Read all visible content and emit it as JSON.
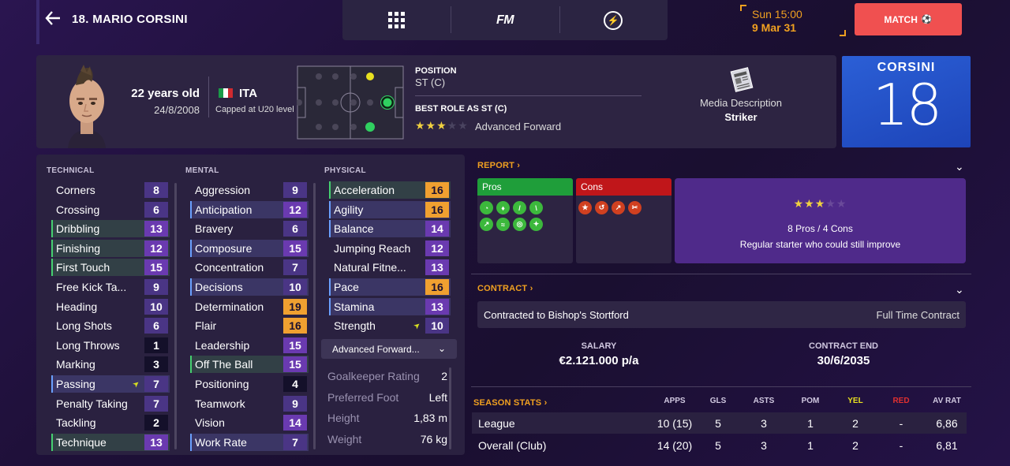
{
  "topbar": {
    "player_title": "18. MARIO CORSINI",
    "nav_logo": "FM",
    "time": "Sun 15:00",
    "date": "9 Mar 31",
    "match_label": "MATCH"
  },
  "header": {
    "age": "22 years old",
    "dob": "24/8/2008",
    "nationality": "ITA",
    "capped": "Capped at U20 level",
    "position_label": "POSITION",
    "position_value": "ST (C)",
    "best_role_label": "BEST ROLE AS ST (C)",
    "best_role_stars": 3,
    "best_role_value": "Advanced Forward",
    "media_label": "Media Description",
    "media_value": "Striker",
    "shirt_name": "CORSINI",
    "shirt_number": "18"
  },
  "attributes": {
    "technical_label": "TECHNICAL",
    "mental_label": "MENTAL",
    "physical_label": "PHYSICAL",
    "technical": [
      {
        "name": "Corners",
        "value": "8",
        "hl": ""
      },
      {
        "name": "Crossing",
        "value": "6",
        "hl": ""
      },
      {
        "name": "Dribbling",
        "value": "13",
        "hl": "hlg"
      },
      {
        "name": "Finishing",
        "value": "12",
        "hl": "hlg"
      },
      {
        "name": "First Touch",
        "value": "15",
        "hl": "hlg"
      },
      {
        "name": "Free Kick Ta...",
        "value": "9",
        "hl": ""
      },
      {
        "name": "Heading",
        "value": "10",
        "hl": ""
      },
      {
        "name": "Long Shots",
        "value": "6",
        "hl": ""
      },
      {
        "name": "Long Throws",
        "value": "1",
        "hl": ""
      },
      {
        "name": "Marking",
        "value": "3",
        "hl": ""
      },
      {
        "name": "Passing",
        "value": "7",
        "hl": "hl",
        "arrow": true
      },
      {
        "name": "Penalty Taking",
        "value": "7",
        "hl": ""
      },
      {
        "name": "Tackling",
        "value": "2",
        "hl": ""
      },
      {
        "name": "Technique",
        "value": "13",
        "hl": "hlg"
      }
    ],
    "mental": [
      {
        "name": "Aggression",
        "value": "9",
        "hl": ""
      },
      {
        "name": "Anticipation",
        "value": "12",
        "hl": "hl"
      },
      {
        "name": "Bravery",
        "value": "6",
        "hl": ""
      },
      {
        "name": "Composure",
        "value": "15",
        "hl": "hl"
      },
      {
        "name": "Concentration",
        "value": "7",
        "hl": ""
      },
      {
        "name": "Decisions",
        "value": "10",
        "hl": "hl"
      },
      {
        "name": "Determination",
        "value": "19",
        "hl": ""
      },
      {
        "name": "Flair",
        "value": "16",
        "hl": ""
      },
      {
        "name": "Leadership",
        "value": "15",
        "hl": ""
      },
      {
        "name": "Off The Ball",
        "value": "15",
        "hl": "hlg"
      },
      {
        "name": "Positioning",
        "value": "4",
        "hl": ""
      },
      {
        "name": "Teamwork",
        "value": "9",
        "hl": ""
      },
      {
        "name": "Vision",
        "value": "14",
        "hl": ""
      },
      {
        "name": "Work Rate",
        "value": "7",
        "hl": "hl"
      }
    ],
    "physical": [
      {
        "name": "Acceleration",
        "value": "16",
        "hl": "hlg"
      },
      {
        "name": "Agility",
        "value": "16",
        "hl": "hl"
      },
      {
        "name": "Balance",
        "value": "14",
        "hl": "hl"
      },
      {
        "name": "Jumping Reach",
        "value": "12",
        "hl": ""
      },
      {
        "name": "Natural Fitne...",
        "value": "13",
        "hl": ""
      },
      {
        "name": "Pace",
        "value": "16",
        "hl": "hl"
      },
      {
        "name": "Stamina",
        "value": "13",
        "hl": "hl"
      },
      {
        "name": "Strength",
        "value": "10",
        "hl": "",
        "arrow": true
      }
    ],
    "role_dropdown": "Advanced Forward...",
    "info": [
      {
        "key": "Goalkeeper Rating",
        "value": "2"
      },
      {
        "key": "Preferred Foot",
        "value": "Left"
      },
      {
        "key": "Height",
        "value": "1,83 m"
      },
      {
        "key": "Weight",
        "value": "76 kg"
      }
    ]
  },
  "report": {
    "heading": "REPORT",
    "pros_label": "Pros",
    "cons_label": "Cons",
    "stars": 3,
    "count_text": "8 Pros / 4 Cons",
    "summary": "Regular starter who could still improve"
  },
  "contract": {
    "heading": "CONTRACT",
    "club_text": "Contracted to Bishop's Stortford",
    "type": "Full Time Contract",
    "salary_label": "SALARY",
    "salary_value": "€2.121.000 p/a",
    "end_label": "CONTRACT END",
    "end_value": "30/6/2035"
  },
  "season_stats": {
    "heading": "SEASON STATS",
    "columns": [
      "APPS",
      "GLS",
      "ASTS",
      "POM",
      "YEL",
      "RED",
      "AV RAT"
    ],
    "rows": [
      {
        "label": "League",
        "cells": [
          "10 (15)",
          "5",
          "3",
          "1",
          "2",
          "-",
          "6,86"
        ]
      },
      {
        "label": "Overall (Club)",
        "cells": [
          "14 (20)",
          "5",
          "3",
          "1",
          "2",
          "-",
          "6,81"
        ]
      }
    ]
  },
  "colors": {
    "accent_orange": "#f0a020",
    "match_red": "#f05050",
    "pros_green": "#1f9e3a",
    "cons_red": "#c0161a",
    "summary_purple": "#4f2a8a"
  }
}
